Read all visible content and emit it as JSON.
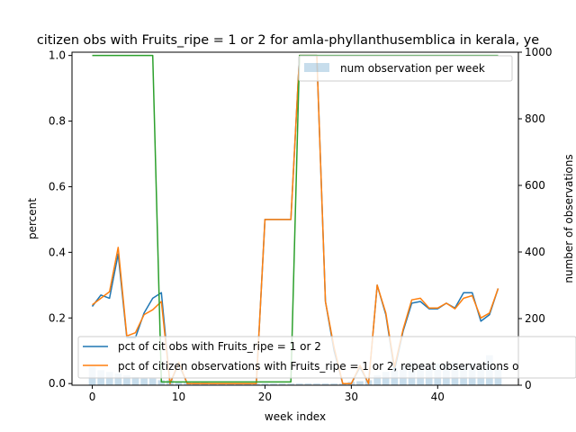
{
  "chart_data": {
    "type": "line",
    "title": "citizen obs with Fruits_ripe = 1 or 2 for amla-phyllanthusemblica in kerala, ye",
    "xlabel": "week index",
    "ylabel": "percent",
    "y2label": "number of observations",
    "xlim": [
      -2.35,
      49.35
    ],
    "ylim": [
      -0.005,
      1.01
    ],
    "y2lim": [
      0,
      1000
    ],
    "xticks": [
      "0",
      "10",
      "20",
      "30",
      "40"
    ],
    "xtick_values": [
      0,
      10,
      20,
      30,
      40
    ],
    "yticks": [
      "0.0",
      "0.2",
      "0.4",
      "0.6",
      "0.8",
      "1.0"
    ],
    "ytick_values": [
      0,
      0.2,
      0.4,
      0.6,
      0.8,
      1.0
    ],
    "y2ticks": [
      "0",
      "200",
      "400",
      "600",
      "800",
      "1000"
    ],
    "y2tick_values": [
      0,
      200,
      400,
      600,
      800,
      1000
    ],
    "x": [
      0,
      1,
      2,
      3,
      4,
      5,
      6,
      7,
      8,
      9,
      10,
      11,
      12,
      13,
      14,
      15,
      16,
      17,
      18,
      19,
      20,
      21,
      22,
      23,
      24,
      25,
      26,
      27,
      28,
      29,
      30,
      31,
      32,
      33,
      34,
      35,
      36,
      37,
      38,
      39,
      40,
      41,
      42,
      43,
      44,
      45,
      46,
      47
    ],
    "bars": {
      "name": "num observation per week",
      "color": "#1f77b4",
      "opacity": 0.25,
      "values": [
        55,
        45,
        40,
        35,
        30,
        25,
        20,
        20,
        15,
        15,
        10,
        10,
        8,
        8,
        6,
        6,
        5,
        5,
        5,
        5,
        5,
        5,
        5,
        5,
        5,
        5,
        5,
        5,
        5,
        5,
        10,
        12,
        15,
        30,
        40,
        45,
        60,
        70,
        65,
        60,
        65,
        65,
        70,
        60,
        65,
        60,
        90,
        55
      ]
    },
    "series": [
      {
        "name": "pct of cit obs with Fruits_ripe = 1 or 2",
        "color": "#1f77b4",
        "values": [
          0.235,
          0.27,
          0.26,
          0.395,
          0.14,
          0.14,
          0.215,
          0.26,
          0.277,
          0.0,
          0.06,
          0.0,
          0.0,
          0.0,
          0.0,
          0.0,
          0.0,
          0.0,
          0.0,
          0.0,
          0.5,
          0.5,
          0.5,
          0.5,
          1.0,
          1.0,
          1.0,
          0.25,
          0.1,
          0.0,
          0.0,
          0.05,
          0.0,
          0.3,
          0.21,
          0.04,
          0.16,
          0.245,
          0.25,
          0.228,
          0.228,
          0.245,
          0.23,
          0.277,
          0.277,
          0.19,
          0.21,
          0.29
        ]
      },
      {
        "name": "pct of citizen observations with Fruits_ripe = 1 or 2, repeat observations o",
        "color": "#ff7f0e",
        "values": [
          0.24,
          0.26,
          0.28,
          0.415,
          0.145,
          0.155,
          0.21,
          0.225,
          0.25,
          0.0,
          0.065,
          0.0,
          0.0,
          0.0,
          0.0,
          0.0,
          0.0,
          0.0,
          0.0,
          0.0,
          0.5,
          0.5,
          0.5,
          0.5,
          1.0,
          1.0,
          1.0,
          0.25,
          0.11,
          0.0,
          0.0,
          0.055,
          0.0,
          0.3,
          0.215,
          0.05,
          0.165,
          0.255,
          0.26,
          0.23,
          0.23,
          0.245,
          0.228,
          0.26,
          0.268,
          0.2,
          0.215,
          0.29
        ]
      },
      {
        "name": "",
        "color": "#2ca02c",
        "values": [
          1,
          1,
          1,
          1,
          1,
          1,
          1,
          1,
          0.005,
          0.005,
          0.005,
          0.005,
          0.005,
          0.005,
          0.005,
          0.005,
          0.005,
          0.005,
          0.005,
          0.005,
          0.005,
          0.005,
          0.005,
          0.005,
          1,
          1,
          1,
          1,
          1,
          1,
          1,
          1,
          1,
          1,
          1,
          1,
          1,
          1,
          1,
          1,
          1,
          1,
          1,
          1,
          1,
          1,
          1,
          1
        ]
      }
    ],
    "legend_upper_right": "upper right",
    "legend_lower": "lower left"
  }
}
